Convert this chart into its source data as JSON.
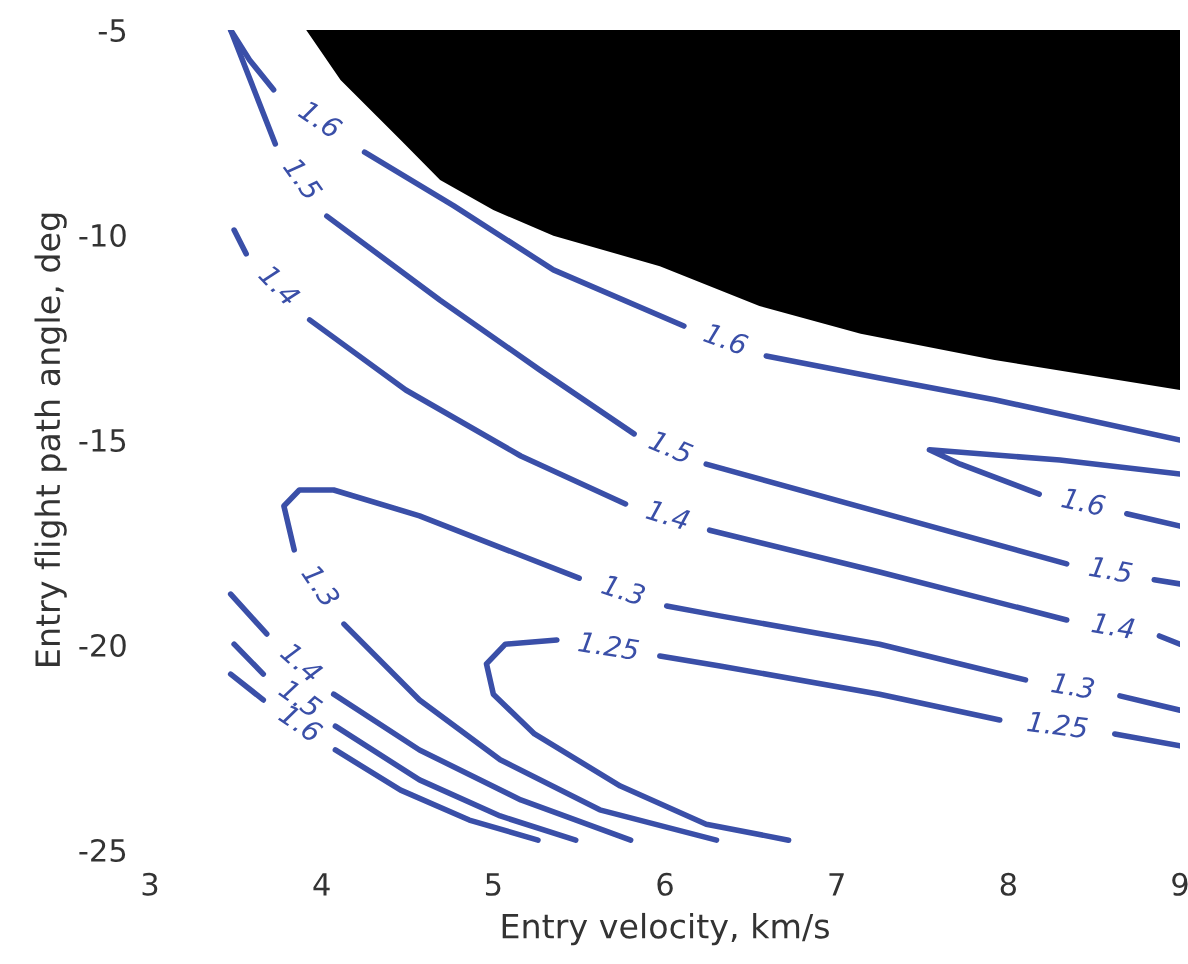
{
  "chart_data": {
    "type": "line",
    "xlabel": "Entry velocity, km/s",
    "ylabel": "Entry flight path angle, deg",
    "xlim": [
      3,
      9
    ],
    "xticks": [
      3,
      4,
      5,
      6,
      7,
      8,
      9
    ],
    "ylim": [
      -25,
      -5
    ],
    "yticks": [
      -25,
      -20,
      -15,
      -10,
      -5
    ],
    "grid": false,
    "line_style": "solid",
    "marker": "none",
    "series": [
      {
        "type": "area",
        "color": "#000000",
        "x": [
          3.91,
          4.11,
          4.46,
          4.69,
          5.0,
          5.35,
          5.97,
          6.55,
          7.14,
          7.92,
          9.0
        ],
        "values": [
          -5,
          -6.22,
          -7.68,
          -8.66,
          -9.39,
          -10.02,
          -10.76,
          -11.73,
          -12.41,
          -13.05,
          -13.78
        ]
      },
      {
        "name": "1.6",
        "color": "#3a4fa8",
        "x": [
          3.47,
          3.58,
          3.72,
          4.03,
          4.25,
          4.77,
          5.35,
          6.11,
          6.36,
          6.59,
          7.25,
          7.92,
          9.0
        ],
        "values": [
          -5,
          -5.73,
          -6.46,
          null,
          -7.98,
          -9.29,
          -10.85,
          -12.22,
          null,
          -12.95,
          -13.49,
          -14.02,
          -15.0
        ]
      },
      {
        "name": "1.5",
        "color": "#3a4fa8",
        "x": [
          3.47,
          3.73,
          3.85,
          4.03,
          4.69,
          5.27,
          5.82,
          6.09,
          6.24,
          7.25,
          8.34,
          8.57,
          8.85,
          9.0
        ],
        "values": [
          -5,
          -7.78,
          null,
          -9.54,
          -11.59,
          -13.29,
          -14.85,
          null,
          -15.59,
          -16.76,
          -18.02,
          null,
          -18.41,
          -18.51
        ]
      },
      {
        "name": "1.4",
        "color": "#3a4fa8",
        "x": [
          3.49,
          3.56,
          3.7,
          3.93,
          4.49,
          5.16,
          5.77,
          6.03,
          6.26,
          7.25,
          8.34,
          8.62,
          8.88,
          9.0
        ],
        "values": [
          -9.88,
          -10.46,
          null,
          -12.07,
          -13.78,
          -15.39,
          -16.56,
          null,
          -17.2,
          -18.22,
          -19.39,
          null,
          -19.78,
          -19.98
        ]
      },
      {
        "name": "1.3",
        "color": "#3a4fa8",
        "x": [
          6.3,
          5.62,
          5.04,
          4.57,
          4.13,
          3.96,
          3.84,
          3.78,
          3.87,
          4.07,
          4.57,
          5.5,
          5.77,
          6.01,
          6.32,
          7.25,
          8.1,
          8.38,
          8.65,
          9.0
        ],
        "values": [
          -24.76,
          -24.02,
          -22.8,
          -21.34,
          -19.49,
          null,
          -17.68,
          -16.61,
          -16.22,
          -16.22,
          -16.85,
          -18.37,
          null,
          -19.05,
          -19.29,
          -19.98,
          -20.85,
          null,
          -21.24,
          -21.59
        ]
      },
      {
        "name": "1.25",
        "color": "#3a4fa8",
        "x": [
          6.72,
          6.24,
          5.74,
          5.24,
          5.0,
          4.96,
          5.07,
          5.37,
          5.66,
          5.97,
          6.32,
          7.25,
          7.95,
          8.3,
          8.62,
          9.0
        ],
        "values": [
          -24.76,
          -24.37,
          -23.44,
          -22.17,
          -21.2,
          -20.46,
          -19.98,
          -19.88,
          null,
          -20.27,
          -20.51,
          -21.2,
          -21.83,
          null,
          -22.17,
          -22.46
        ]
      },
      {
        "name": "1.4",
        "color": "#3a4fa8",
        "x": [
          3.47,
          3.68,
          3.78,
          4.07,
          4.57,
          5.16,
          5.8
        ],
        "values": [
          -18.76,
          -19.73,
          null,
          -21.2,
          -22.56,
          -23.78,
          -24.76
        ]
      },
      {
        "name": "1.5",
        "color": "#3a4fa8",
        "x": [
          3.49,
          3.66,
          3.82,
          4.08,
          4.57,
          5.04,
          5.48
        ],
        "values": [
          -19.98,
          -20.71,
          null,
          -21.98,
          -23.29,
          -24.17,
          -24.76
        ]
      },
      {
        "name": "1.6",
        "color": "#3a4fa8",
        "x": [
          3.47,
          3.66,
          3.79,
          4.08,
          4.46,
          4.86,
          5.26
        ],
        "values": [
          -20.71,
          -21.34,
          null,
          -22.56,
          -23.54,
          -24.27,
          -24.76
        ]
      },
      {
        "name": "1.6",
        "color": "#3a4fa8",
        "x": [
          9.0,
          8.3,
          7.54,
          7.72,
          8.18,
          8.38,
          8.69,
          9.0
        ],
        "values": [
          -15.83,
          -15.49,
          -15.24,
          -15.59,
          -16.32,
          null,
          -16.8,
          -17.1
        ]
      }
    ]
  }
}
